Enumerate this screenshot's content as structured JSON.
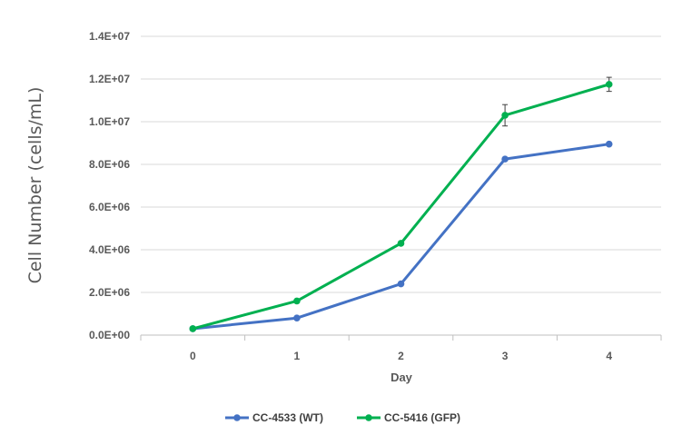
{
  "chart_data": {
    "type": "line",
    "x": [
      0,
      1,
      2,
      3,
      4
    ],
    "xlabel": "Day",
    "ylabel": "Cell Number (cells/mL)",
    "ylim": [
      0,
      14000000
    ],
    "y_ticks": [
      "0.0E+00",
      "2.0E+06",
      "4.0E+06",
      "6.0E+06",
      "8.0E+06",
      "1.0E+07",
      "1.2E+07",
      "1.4E+07"
    ],
    "y_tick_values": [
      0,
      2000000,
      4000000,
      6000000,
      8000000,
      10000000,
      12000000,
      14000000
    ],
    "x_ticks": [
      "0",
      "1",
      "2",
      "3",
      "4"
    ],
    "grid": "horizontal",
    "legend_position": "bottom",
    "series": [
      {
        "name": "CC-4533 (WT)",
        "color": "#4472C4",
        "values": [
          300000,
          800000,
          2400000,
          8250000,
          8950000
        ]
      },
      {
        "name": "CC-5416 (GFP)",
        "color": "#00B050",
        "values": [
          300000,
          1600000,
          4300000,
          10300000,
          11750000
        ],
        "error": [
          0,
          0,
          0,
          500000,
          330000
        ]
      }
    ]
  }
}
